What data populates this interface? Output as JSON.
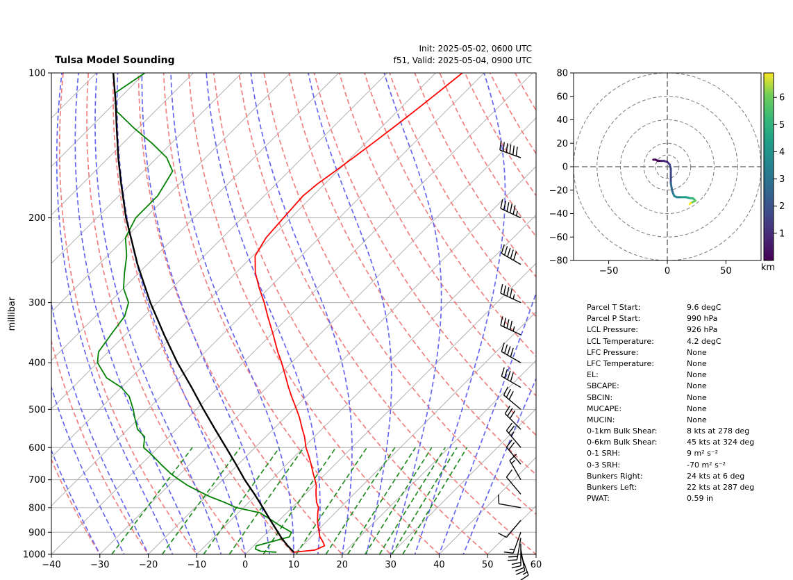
{
  "title": "Tulsa Model Sounding",
  "init_label": "Init: 2025-05-02, 0600 UTC",
  "valid_label": "f51, Valid: 2025-05-04, 0900 UTC",
  "colors": {
    "temperature": "#ff0000",
    "dewpoint": "#008000",
    "parcel": "#000000",
    "dry_adiabat": "#f08080",
    "moist_adiabat": "#6666ee",
    "mixing_ratio": "#228b22",
    "isotherm": "#aaaaaa"
  },
  "chart_data": [
    {
      "type": "line",
      "subtype": "skew-t log-p",
      "ylabel": "millibar",
      "xlim": [
        -40,
        60
      ],
      "ylim": [
        1000,
        100
      ],
      "x_ticks": [
        "−40",
        "−30",
        "−20",
        "−10",
        "0",
        "10",
        "20",
        "30",
        "40",
        "50",
        "60"
      ],
      "y_ticks": [
        "1000",
        "900",
        "800",
        "700",
        "600",
        "500",
        "400",
        "300",
        "200",
        "100"
      ],
      "grid": true,
      "series": [
        {
          "key": "temperature",
          "pressure": [
            990,
            980,
            960,
            940,
            920,
            900,
            870,
            850,
            820,
            800,
            780,
            760,
            740,
            720,
            700,
            680,
            650,
            620,
            600,
            570,
            550,
            520,
            500,
            470,
            450,
            430,
            400,
            380,
            350,
            320,
            300,
            280,
            260,
            240,
            220,
            200,
            180,
            170,
            160,
            150,
            140,
            130,
            120,
            110,
            100
          ],
          "values": [
            9.6,
            13.5,
            14.6,
            13.3,
            11.8,
            10.7,
            9.0,
            7.9,
            6.4,
            5.5,
            4.0,
            2.8,
            1.6,
            0.5,
            -1.0,
            -2.6,
            -5.0,
            -7.6,
            -9.5,
            -12.0,
            -14.0,
            -17.0,
            -19.3,
            -23.0,
            -25.5,
            -28.0,
            -32.0,
            -35.0,
            -39.5,
            -44.5,
            -48.0,
            -52.0,
            -56.0,
            -59.5,
            -61.0,
            -61.5,
            -62.0,
            -61.5,
            -60.5,
            -59.5,
            -58.5,
            -57.5,
            -56.5,
            -55.5,
            -54.5
          ]
        },
        {
          "key": "dewpoint",
          "pressure": [
            990,
            985,
            975,
            960,
            940,
            920,
            900,
            870,
            850,
            820,
            800,
            780,
            760,
            740,
            720,
            700,
            680,
            650,
            620,
            600,
            570,
            550,
            520,
            500,
            470,
            450,
            430,
            400,
            380,
            350,
            320,
            300,
            280,
            260,
            240,
            220,
            200,
            180,
            160,
            150,
            140,
            130,
            120,
            110,
            100
          ],
          "values": [
            6.0,
            2.5,
            1.0,
            0.5,
            3.0,
            5.5,
            5.0,
            1.0,
            -1.5,
            -5.5,
            -11.5,
            -15.0,
            -19.0,
            -22.5,
            -26.0,
            -29.0,
            -32.0,
            -36.0,
            -40.0,
            -43.0,
            -45.0,
            -48.0,
            -51.0,
            -53.0,
            -56.5,
            -60.0,
            -65.0,
            -70.0,
            -72.0,
            -73.0,
            -74.0,
            -76.0,
            -80.0,
            -83.0,
            -86.0,
            -90.0,
            -92.0,
            -92.0,
            -94.0,
            -98.0,
            -104.0,
            -111.0,
            -118.0,
            -122.0,
            -120.0
          ]
        },
        {
          "key": "parcel",
          "pressure": [
            990,
            960,
            926,
            900,
            850,
            800,
            750,
            700,
            650,
            600,
            550,
            500,
            450,
            400,
            350,
            300,
            250,
            200,
            170,
            150,
            130,
            115,
            100
          ],
          "values": [
            9.6,
            7.0,
            4.2,
            2.2,
            -1.8,
            -6.0,
            -10.5,
            -15.5,
            -20.5,
            -26.0,
            -32.0,
            -38.5,
            -45.5,
            -53.5,
            -62.0,
            -71.5,
            -82.0,
            -94.0,
            -102.0,
            -108.0,
            -114.5,
            -120.0,
            -126.5
          ]
        }
      ],
      "wind_barbs": {
        "pressure": [
          1000,
          975,
          950,
          925,
          900,
          850,
          800,
          750,
          700,
          650,
          600,
          550,
          500,
          450,
          400,
          350,
          300,
          250,
          200,
          150
        ],
        "speed_kts": [
          15,
          18,
          20,
          22,
          16,
          10,
          8,
          10,
          15,
          22,
          25,
          28,
          32,
          38,
          40,
          44,
          47,
          48,
          55,
          58
        ],
        "direction_deg": [
          160,
          170,
          180,
          190,
          200,
          220,
          280,
          320,
          330,
          320,
          320,
          315,
          310,
          300,
          300,
          295,
          295,
          300,
          295,
          290
        ]
      }
    },
    {
      "type": "line",
      "subtype": "hodograph",
      "xlim": [
        -80,
        80
      ],
      "ylim": [
        -80,
        80
      ],
      "x_ticks": [
        "−50",
        "0",
        "50"
      ],
      "y_ticks": [
        "80",
        "60",
        "40",
        "20",
        "0",
        "−20",
        "−40",
        "−60",
        "−80"
      ],
      "rings": [
        10,
        20,
        40,
        60,
        80
      ],
      "colorbar_label": "km",
      "colorbar_ticks": [
        "1",
        "2",
        "3",
        "4",
        "5",
        "6"
      ],
      "u": [
        -12,
        -10,
        -8,
        -5,
        -3,
        0,
        2,
        3,
        3,
        3,
        4,
        5,
        6,
        8,
        12,
        16,
        20,
        22,
        24,
        22,
        20,
        19
      ],
      "v": [
        6,
        6,
        5,
        5,
        5,
        4,
        2,
        -2,
        -8,
        -14,
        -20,
        -23,
        -25,
        -26,
        -26,
        -26,
        -27,
        -27,
        -29,
        -30,
        -31,
        -32
      ],
      "height_km": [
        0.0,
        0.2,
        0.4,
        0.6,
        0.8,
        1.0,
        1.3,
        1.6,
        2.0,
        2.3,
        2.7,
        3.0,
        3.3,
        3.6,
        4.0,
        4.4,
        4.8,
        5.2,
        5.6,
        6.0,
        6.4,
        6.8
      ]
    }
  ],
  "params": [
    {
      "label": "Parcel T Start:",
      "value": "9.6 degC"
    },
    {
      "label": "Parcel P Start:",
      "value": "990 hPa"
    },
    {
      "label": "LCL Pressure:",
      "value": "926 hPa"
    },
    {
      "label": "LCL Temperature:",
      "value": "4.2 degC"
    },
    {
      "label": "LFC Pressure:",
      "value": "None"
    },
    {
      "label": "LFC Temperature:",
      "value": "None"
    },
    {
      "label": "EL:",
      "value": "None"
    },
    {
      "label": "SBCAPE:",
      "value": "None"
    },
    {
      "label": "SBCIN:",
      "value": "None"
    },
    {
      "label": "MUCAPE:",
      "value": "None"
    },
    {
      "label": "MUCIN:",
      "value": "None"
    },
    {
      "label": "0-1km Bulk Shear:",
      "value": "8 kts at 278 deg"
    },
    {
      "label": "0-6km Bulk Shear:",
      "value": "45 kts at 324 deg"
    },
    {
      "label": "0-1 SRH:",
      "value": "9 m² s⁻²"
    },
    {
      "label": "0-3 SRH:",
      "value": "-70 m² s⁻²"
    },
    {
      "label": "Bunkers Right:",
      "value": "24 kts at 6 deg"
    },
    {
      "label": "Bunkers Left:",
      "value": "22 kts at 287 deg"
    },
    {
      "label": "PWAT:",
      "value": "0.59 in"
    }
  ]
}
